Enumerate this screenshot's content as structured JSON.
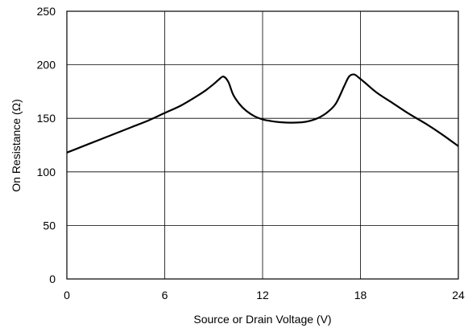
{
  "chart_data": {
    "type": "line",
    "xlabel": "Source or Drain Voltage (V)",
    "ylabel": "On Resistance (Ω)",
    "xlim": [
      0,
      24
    ],
    "ylim": [
      0,
      250
    ],
    "xticks": [
      "0",
      "6",
      "12",
      "18",
      "24"
    ],
    "yticks": [
      "0",
      "50",
      "100",
      "150",
      "200",
      "250"
    ],
    "grid": true,
    "series": [
      {
        "color": "#000000",
        "x": [
          0,
          1,
          2,
          3,
          4,
          5,
          6,
          7,
          8,
          8.5,
          9,
          9.3,
          9.6,
          9.9,
          10.2,
          10.6,
          11,
          11.5,
          12,
          12.5,
          13,
          13.5,
          14,
          14.5,
          15,
          15.5,
          16,
          16.5,
          17,
          17.3,
          17.6,
          17.9,
          18.3,
          19,
          20,
          21,
          22,
          23,
          24
        ],
        "y": [
          118,
          124,
          130,
          136,
          142,
          148,
          155,
          162,
          171,
          176,
          182,
          186,
          189,
          184,
          172,
          163,
          157,
          152,
          149,
          147.5,
          146.5,
          146,
          146,
          146.5,
          148,
          151,
          156,
          164,
          180,
          189,
          191,
          188,
          183,
          174,
          164,
          154,
          145,
          135,
          124
        ]
      }
    ]
  }
}
